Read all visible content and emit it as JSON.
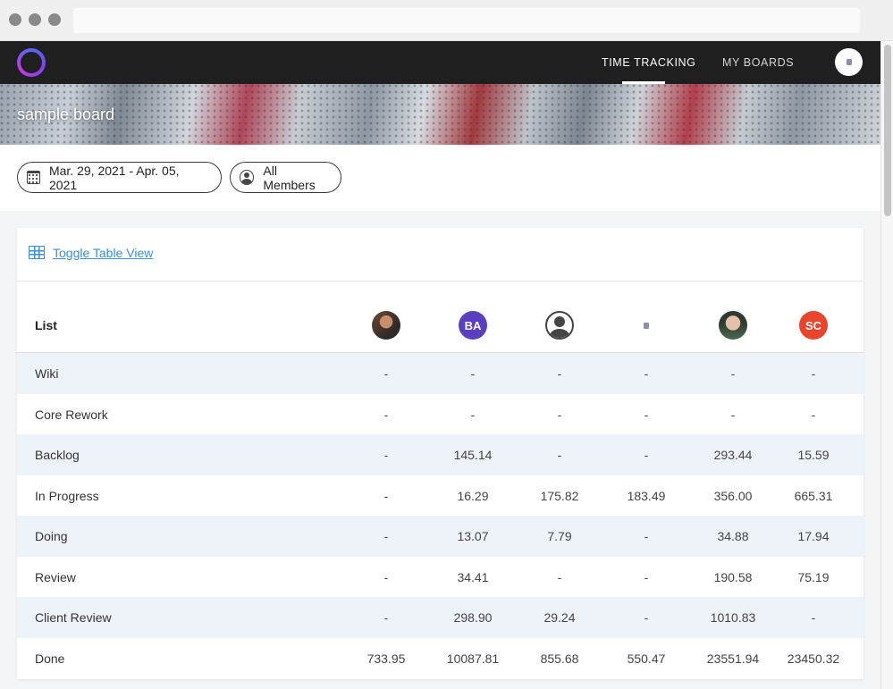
{
  "header": {
    "nav": [
      {
        "label": "TIME TRACKING",
        "active": true
      },
      {
        "label": "MY BOARDS",
        "active": false
      }
    ],
    "user_avatar_icon": "user-avatar-icon"
  },
  "board": {
    "title": "sample board"
  },
  "filters": {
    "date_range": "Mar. 29, 2021 - Apr. 05, 2021",
    "members": "All Members"
  },
  "table": {
    "toggle_label": "Toggle Table View",
    "list_header": "List",
    "members": [
      {
        "avatar": "photo-avatar",
        "initials": ""
      },
      {
        "avatar": "initials-avatar",
        "initials": "BA",
        "color": "#5a3fc0"
      },
      {
        "avatar": "generic-user-icon",
        "initials": ""
      },
      {
        "avatar": "small-placeholder-icon",
        "initials": ""
      },
      {
        "avatar": "photo-avatar",
        "initials": ""
      },
      {
        "avatar": "initials-avatar",
        "initials": "SC",
        "color": "#e8452c"
      }
    ],
    "rows": [
      {
        "list": "Wiki",
        "values": [
          "-",
          "-",
          "-",
          "-",
          "-",
          "-"
        ]
      },
      {
        "list": "Core Rework",
        "values": [
          "-",
          "-",
          "-",
          "-",
          "-",
          "-"
        ]
      },
      {
        "list": "Backlog",
        "values": [
          "-",
          "145.14",
          "-",
          "-",
          "293.44",
          "15.59"
        ]
      },
      {
        "list": "In Progress",
        "values": [
          "-",
          "16.29",
          "175.82",
          "183.49",
          "356.00",
          "665.31"
        ]
      },
      {
        "list": "Doing",
        "values": [
          "-",
          "13.07",
          "7.79",
          "-",
          "34.88",
          "17.94"
        ]
      },
      {
        "list": "Review",
        "values": [
          "-",
          "34.41",
          "-",
          "-",
          "190.58",
          "75.19"
        ]
      },
      {
        "list": "Client Review",
        "values": [
          "-",
          "298.90",
          "29.24",
          "-",
          "1010.83",
          "-"
        ]
      },
      {
        "list": "Done",
        "values": [
          "733.95",
          "10087.81",
          "855.68",
          "550.47",
          "23551.94",
          "23450.32"
        ]
      }
    ]
  }
}
